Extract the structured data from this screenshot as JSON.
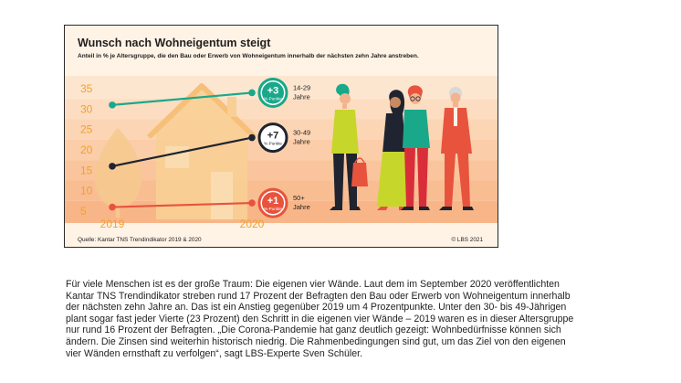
{
  "chart_data": {
    "type": "line",
    "title": "Wunsch nach Wohneigentum steigt",
    "subtitle": "Anteil in % je Altersgruppe, die den Bau oder Erwerb von Wohneigentum innerhalb der nächsten zehn Jahre anstreben.",
    "categories": [
      "2019",
      "2020"
    ],
    "y_ticks": [
      "35",
      "30",
      "25",
      "20",
      "15",
      "10",
      "5"
    ],
    "ylim": [
      5,
      35
    ],
    "series": [
      {
        "name": "14-29 Jahre",
        "values": [
          31,
          34
        ],
        "change": "+3",
        "change_unit": "%-Punkte",
        "age_line1": "14-29",
        "age_line2": "Jahre",
        "color": "#1aa88a"
      },
      {
        "name": "30-49 Jahre",
        "values": [
          16,
          23
        ],
        "change": "+7",
        "change_unit": "%-Punkte",
        "age_line1": "30-49",
        "age_line2": "Jahre",
        "color": "#1f2430"
      },
      {
        "name": "50+ Jahre",
        "values": [
          6,
          7
        ],
        "change": "+1",
        "change_unit": "%-Punkte",
        "age_line1": "50+",
        "age_line2": "Jahre",
        "color": "#e8533d"
      }
    ],
    "tick_color": "#f0a030",
    "source": "Quelle: Kantar TNS Trendindikator 2019 & 2020",
    "copyright": "© LBS 2021"
  },
  "article": {
    "text": "Für viele Menschen ist es der große Traum: Die eigenen vier Wände. Laut dem im September 2020 veröffentlichten Kantar TNS Trendindikator streben rund 17 Prozent der Befragten den Bau oder Erwerb von Wohneigentum innerhalb der nächsten zehn Jahre an. Das ist ein Anstieg gegenüber 2019 um 4 Prozentpunkte. Unter den 30- bis 49-Jährigen plant sogar fast jeder Vierte (23 Prozent) den Schritt in die eigenen vier Wände – 2019 waren es in dieser Altersgruppe nur rund 16 Prozent der Befragten. „Die Corona-Pandemie hat ganz deutlich gezeigt: Wohnbedürfnisse können sich ändern. Die Zinsen sind weiterhin historisch niedrig. Die Rahmenbedingungen sind gut, um das Ziel von den eigenen vier Wänden ernsthaft zu verfolgen“, sagt LBS-Experte Sven Schüler."
  }
}
